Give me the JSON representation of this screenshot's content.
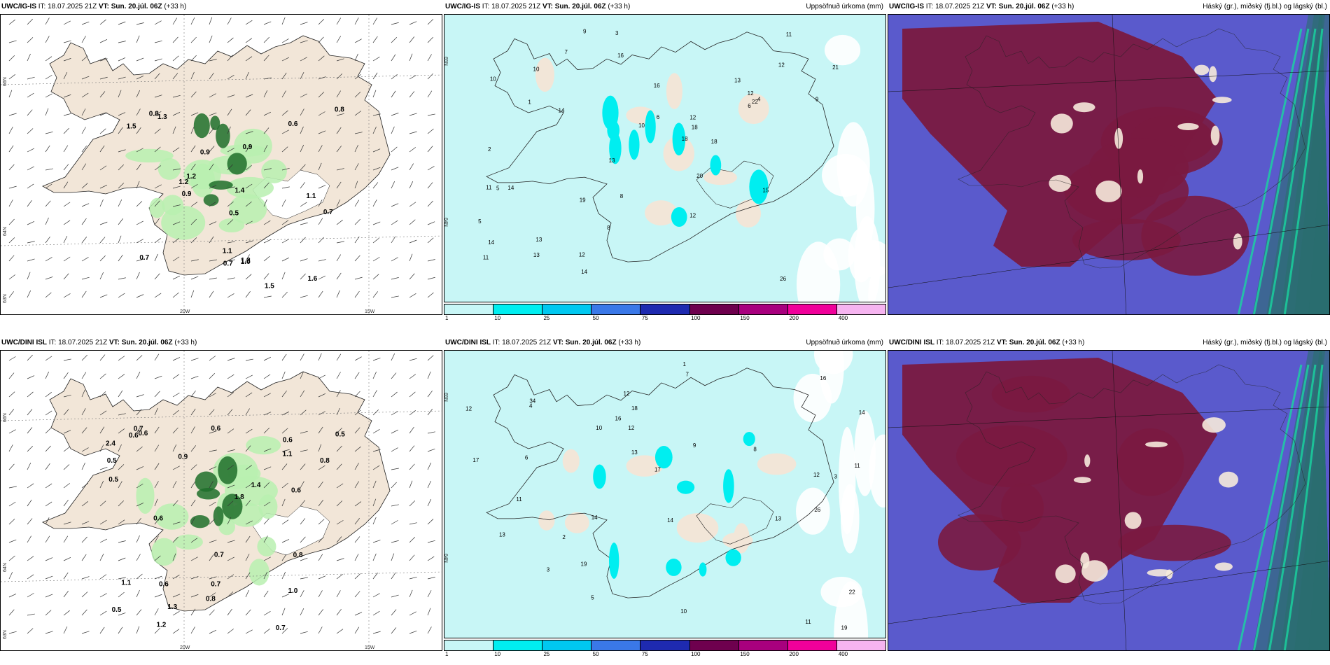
{
  "panels": [
    {
      "id": "p1",
      "model": "UWC/IG-IS",
      "it_label": "IT:",
      "it_value": "18.07.2025 21Z",
      "vt_label": "VT:",
      "vt_value": "Sun. 20.júl. 06Z",
      "lead": "(+33 h)",
      "right_title": "",
      "type": "wind",
      "lat_labels": [
        "66N",
        "64N",
        "63N"
      ],
      "lon_labels": [
        "20W",
        "15W"
      ],
      "values": [
        "0.9",
        "0.8",
        "1.2",
        "0.5",
        "1.3",
        "1.1",
        "1.2",
        "1.4",
        "1.6",
        "1.5",
        "0.9",
        "0.6",
        "0.8",
        "1.1",
        "1.2",
        "0.7",
        "0.7",
        "0.9",
        "1.5",
        "1.0",
        "0.7"
      ]
    },
    {
      "id": "p2",
      "model": "UWC/IG-IS",
      "it_label": "IT:",
      "it_value": "18.07.2025 21Z",
      "vt_label": "VT:",
      "vt_value": "Sun. 20.júl. 06Z",
      "lead": "(+33 h)",
      "right_title": "Uppsöfnuð úrkoma (mm)",
      "type": "precip",
      "lat_labels": [
        "65N",
        "64N"
      ],
      "values": [
        "13",
        "10",
        "9",
        "10",
        "18",
        "15",
        "18",
        "12",
        "22",
        "21",
        "26",
        "14",
        "11",
        "13",
        "14",
        "12",
        "14",
        "20",
        "18",
        "19",
        "12",
        "11",
        "13",
        "12",
        "16",
        "6",
        "8",
        "5",
        "4",
        "3",
        "7",
        "2",
        "1",
        "9",
        "10",
        "11",
        "12",
        "14",
        "16",
        "13",
        "8",
        "6",
        "5"
      ]
    },
    {
      "id": "p3",
      "model": "UWC/IG-IS",
      "it_label": "IT:",
      "it_value": "18.07.2025 21Z",
      "vt_label": "VT:",
      "vt_value": "Sun. 20.júl. 06Z",
      "lead": "(+33 h)",
      "right_title": "Háský (gr.), miðský (fj.bl.) og lágský (bl.)",
      "type": "cloud"
    },
    {
      "id": "p4",
      "model": "UWC/DINI ISL",
      "it_label": "IT:",
      "it_value": "18.07.2025 21Z",
      "vt_label": "VT:",
      "vt_value": "Sun. 20.júl. 06Z",
      "lead": "(+33 h)",
      "right_title": "",
      "type": "wind",
      "lat_labels": [
        "66N",
        "64N",
        "63N"
      ],
      "lon_labels": [
        "20W",
        "15W"
      ],
      "values": [
        "1.1",
        "0.9",
        "1.3",
        "0.7",
        "2.4",
        "0.6",
        "0.7",
        "0.6",
        "0.8",
        "0.6",
        "0.5",
        "0.7",
        "0.6",
        "0.5",
        "0.6",
        "1.0",
        "0.6",
        "1.8",
        "0.8",
        "1.4",
        "0.7",
        "1.1",
        "0.8",
        "0.6",
        "0.5",
        "0.5",
        "1.2"
      ]
    },
    {
      "id": "p5",
      "model": "UWC/DINI ISL",
      "it_label": "IT:",
      "it_value": "18.07.2025 21Z",
      "vt_label": "VT:",
      "vt_value": "Sun. 20.júl. 06Z",
      "lead": "(+33 h)",
      "right_title": "Uppsöfnuð úrkoma (mm)",
      "type": "precip",
      "lat_labels": [
        "65N",
        "64N"
      ],
      "values": [
        "7",
        "3",
        "13",
        "17",
        "16",
        "12",
        "22",
        "26",
        "34",
        "19",
        "14",
        "17",
        "12",
        "11",
        "10",
        "14",
        "13",
        "12",
        "11",
        "8",
        "9",
        "6",
        "5",
        "4",
        "3",
        "2",
        "1",
        "10",
        "11",
        "12",
        "16",
        "18",
        "19",
        "13",
        "14"
      ]
    },
    {
      "id": "p6",
      "model": "UWC/DINI ISL",
      "it_label": "IT:",
      "it_value": "18.07.2025 21Z",
      "vt_label": "VT:",
      "vt_value": "Sun. 20.júl. 06Z",
      "lead": "(+33 h)",
      "right_title": "Háský (gr.), miðský (fj.bl.) og lágský (bl.)",
      "type": "cloud"
    }
  ],
  "legend": {
    "ticks": [
      "1",
      "10",
      "25",
      "50",
      "75",
      "100",
      "150",
      "200",
      "400"
    ],
    "colors": [
      "#c8f6f6",
      "#00eef0",
      "#00c8f0",
      "#3a78e8",
      "#1e2ab0",
      "#6e004e",
      "#a8007e",
      "#f0009a",
      "#f6b4f0"
    ]
  },
  "colors": {
    "land": "#f2e6d8",
    "precip_light": "#c8f6f6",
    "precip_mid": "#00eef0",
    "green_light": "#b8f0b0",
    "green_dark": "#1e6e2a",
    "cloud_high": "#7a1a40",
    "cloud_mid": "#5a5acc",
    "cloud_low": "#2a6e6e"
  }
}
